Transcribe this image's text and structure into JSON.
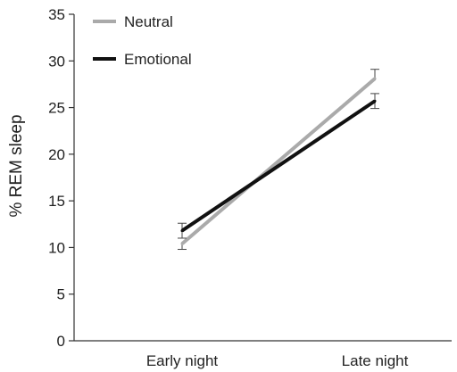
{
  "chart_data": {
    "type": "line",
    "categories": [
      "Early night",
      "Late night"
    ],
    "ylabel": "% REM sleep",
    "xlabel": "",
    "ylim": [
      0,
      35
    ],
    "yticks": [
      0,
      5,
      10,
      15,
      20,
      25,
      30,
      35
    ],
    "grid": false,
    "legend_position": "top-left",
    "series": [
      {
        "name": "Neutral",
        "values": [
          10.4,
          28.1
        ],
        "error": [
          0.6,
          1.0
        ],
        "color": "#aaaaaa"
      },
      {
        "name": "Emotional",
        "values": [
          11.8,
          25.7
        ],
        "error": [
          0.8,
          0.8
        ],
        "color": "#111111"
      }
    ]
  }
}
